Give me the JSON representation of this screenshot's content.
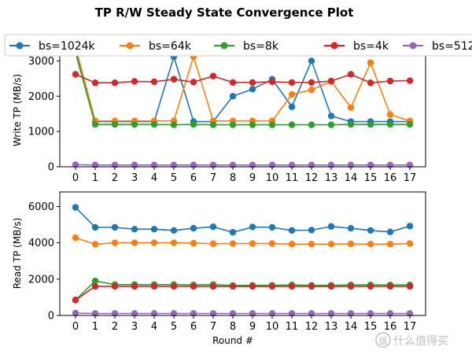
{
  "figure": {
    "title": "TP R/W Steady State Convergence Plot",
    "watermark": "什么值得买"
  },
  "chart_data": [
    {
      "type": "line",
      "panel": "top",
      "title": "TP R/W Steady State Convergence Plot",
      "xlabel": "",
      "ylabel": "Write TP (MB/s)",
      "x": [
        0,
        1,
        2,
        3,
        4,
        5,
        6,
        7,
        8,
        9,
        10,
        11,
        12,
        13,
        14,
        15,
        16,
        17
      ],
      "xlim": [
        -0.8,
        17.8
      ],
      "ylim": [
        0,
        3500
      ],
      "yticks": [
        0,
        1000,
        2000,
        3000
      ],
      "grid": false,
      "legend": "top, outside, horizontal",
      "series": [
        {
          "name": "bs=1024k",
          "color": "#1f77b4",
          "values": [
            3300,
            1280,
            1280,
            1280,
            1280,
            3120,
            1280,
            1280,
            2000,
            2200,
            2480,
            1700,
            3000,
            1440,
            1280,
            1280,
            1280,
            1280
          ]
        },
        {
          "name": "bs=64k",
          "color": "#ff7f0e",
          "values": [
            3400,
            1300,
            1300,
            1300,
            1300,
            1300,
            3120,
            1300,
            1300,
            1300,
            1300,
            2050,
            2180,
            2420,
            1680,
            2950,
            1480,
            1300
          ]
        },
        {
          "name": "bs=8k",
          "color": "#2ca02c",
          "values": [
            3230,
            1200,
            1200,
            1200,
            1200,
            1190,
            1200,
            1190,
            1190,
            1190,
            1190,
            1190,
            1190,
            1190,
            1200,
            1200,
            1200,
            1200
          ]
        },
        {
          "name": "bs=4k",
          "color": "#d62728",
          "values": [
            2620,
            2380,
            2380,
            2420,
            2410,
            2480,
            2400,
            2570,
            2390,
            2390,
            2410,
            2390,
            2390,
            2430,
            2620,
            2380,
            2430,
            2440
          ]
        },
        {
          "name": "bs=512",
          "color": "#9467bd",
          "values": [
            60,
            50,
            50,
            50,
            50,
            50,
            50,
            50,
            50,
            50,
            50,
            50,
            50,
            50,
            50,
            50,
            50,
            50
          ]
        }
      ]
    },
    {
      "type": "line",
      "panel": "bottom",
      "title": "",
      "xlabel": "Round #",
      "ylabel": "Read TP (MB/s)",
      "x": [
        0,
        1,
        2,
        3,
        4,
        5,
        6,
        7,
        8,
        9,
        10,
        11,
        12,
        13,
        14,
        15,
        16,
        17
      ],
      "xlim": [
        -0.8,
        17.8
      ],
      "ylim": [
        0,
        6800
      ],
      "yticks": [
        0,
        2000,
        4000,
        6000
      ],
      "grid": false,
      "series": [
        {
          "name": "bs=1024k",
          "color": "#1f77b4",
          "values": [
            5950,
            4850,
            4850,
            4750,
            4750,
            4680,
            4800,
            4880,
            4580,
            4870,
            4850,
            4680,
            4700,
            4900,
            4800,
            4680,
            4600,
            4920
          ]
        },
        {
          "name": "bs=64k",
          "color": "#ff7f0e",
          "values": [
            4280,
            3920,
            4000,
            4000,
            4000,
            4000,
            3980,
            3950,
            3960,
            3960,
            3960,
            3930,
            3930,
            3930,
            3940,
            3930,
            3930,
            3960
          ]
        },
        {
          "name": "bs=8k",
          "color": "#2ca02c",
          "values": [
            850,
            1900,
            1700,
            1700,
            1700,
            1700,
            1680,
            1700,
            1650,
            1660,
            1660,
            1680,
            1660,
            1660,
            1680,
            1680,
            1680,
            1680
          ]
        },
        {
          "name": "bs=4k",
          "color": "#d62728",
          "values": [
            850,
            1600,
            1600,
            1600,
            1600,
            1600,
            1600,
            1600,
            1600,
            1600,
            1600,
            1600,
            1600,
            1600,
            1600,
            1600,
            1600,
            1600
          ]
        },
        {
          "name": "bs=512",
          "color": "#9467bd",
          "values": [
            130,
            110,
            110,
            110,
            110,
            110,
            110,
            110,
            110,
            110,
            110,
            110,
            110,
            110,
            110,
            110,
            110,
            110
          ]
        }
      ]
    }
  ]
}
